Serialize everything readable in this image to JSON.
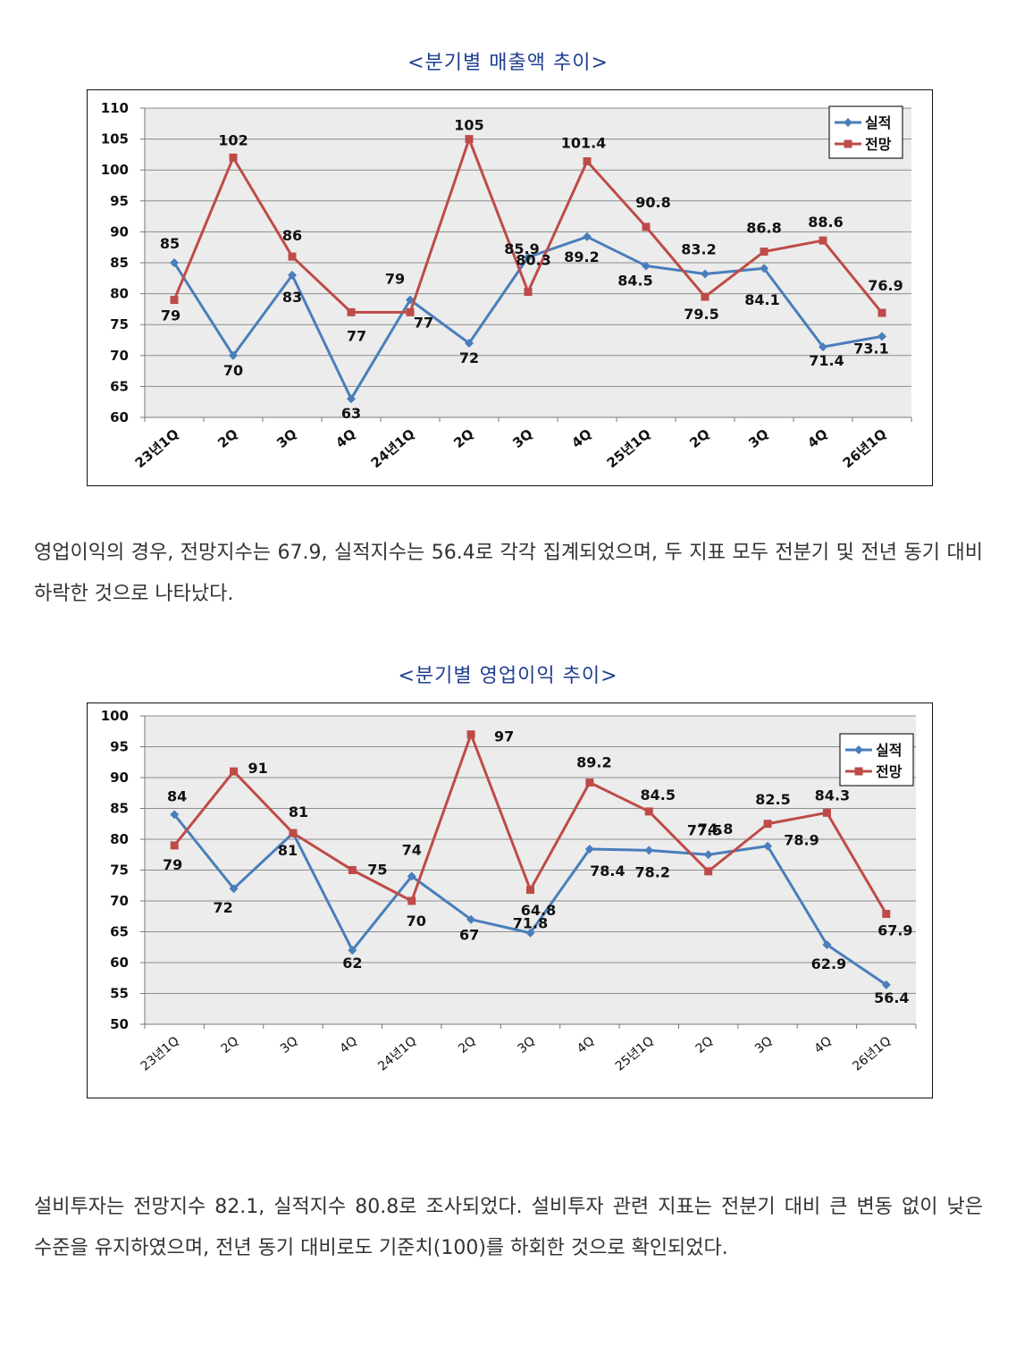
{
  "chart_data": [
    {
      "type": "line",
      "title": "<분기별 매출액 추이>",
      "categories": [
        "23년1Q",
        "2Q",
        "3Q",
        "4Q",
        "24년1Q",
        "2Q",
        "3Q",
        "4Q",
        "25년1Q",
        "2Q",
        "3Q",
        "4Q",
        "26년1Q"
      ],
      "series": [
        {
          "name": "실적",
          "color": "#4a7ebb",
          "values": [
            85,
            70,
            83,
            63,
            79,
            72,
            85.9,
            89.2,
            84.5,
            83.2,
            84.1,
            71.4,
            73.1
          ],
          "labels": [
            "85",
            "70",
            "83",
            "63",
            "79",
            "72",
            "85.9",
            "89.2",
            "84.5",
            "83.2",
            "84.1",
            "71.4",
            "73.1"
          ]
        },
        {
          "name": "전망",
          "color": "#be4b48",
          "values": [
            79,
            102,
            86,
            77,
            77,
            105,
            80.3,
            101.4,
            90.8,
            79.5,
            86.8,
            88.6,
            76.9
          ],
          "labels": [
            "79",
            "102",
            "86",
            "77",
            "77",
            "105",
            "80.3",
            "101.4",
            "90.8",
            "79.5",
            "86.8",
            "88.6",
            "76.9"
          ]
        }
      ],
      "ylim": [
        60,
        110
      ],
      "yticks": [
        "60",
        "65",
        "70",
        "75",
        "80",
        "85",
        "90",
        "95",
        "100",
        "105",
        "110"
      ],
      "grid": true,
      "legend": "top-right"
    },
    {
      "type": "line",
      "title": "<분기별 영업이익 추이>",
      "categories": [
        "23년1Q",
        "2Q",
        "3Q",
        "4Q",
        "24년1Q",
        "2Q",
        "3Q",
        "4Q",
        "25년1Q",
        "2Q",
        "3Q",
        "4Q",
        "26년1Q"
      ],
      "series": [
        {
          "name": "실적",
          "color": "#4a7ebb",
          "values": [
            84,
            72,
            81,
            62,
            74,
            67,
            64.8,
            78.4,
            78.2,
            77.5,
            78.9,
            62.9,
            56.4
          ],
          "labels": [
            "84",
            "72",
            "81",
            "62",
            "74",
            "67",
            "64.8",
            "78.4",
            "78.2",
            "77.5",
            "78.9",
            "62.9",
            "56.4"
          ]
        },
        {
          "name": "전망",
          "color": "#be4b48",
          "values": [
            79,
            91,
            81,
            75,
            70,
            97,
            71.8,
            89.2,
            84.5,
            74.8,
            82.5,
            84.3,
            67.9
          ],
          "labels": [
            "79",
            "91",
            "81",
            "75",
            "70",
            "97",
            "71.8",
            "89.2",
            "84.5",
            "74.8",
            "82.5",
            "84.3",
            "67.9"
          ]
        }
      ],
      "ylim": [
        50,
        100
      ],
      "yticks": [
        "50",
        "55",
        "60",
        "65",
        "70",
        "75",
        "80",
        "85",
        "90",
        "95",
        "100"
      ],
      "grid": true,
      "legend": "top-right"
    }
  ],
  "paragraphs": {
    "p1": "영업이익의 경우, 전망지수는 67.9, 실적지수는 56.4로 각각 집계되었으며, 두 지표 모두 전분기 및 전년 동기 대비 하락한 것으로 나타났다.",
    "p2": "설비투자는 전망지수 82.1, 실적지수 80.8로 조사되었다. 설비투자 관련 지표는 전분기 대비 큰 변동 없이 낮은 수준을 유지하였으며, 전년 동기 대비로도 기준치(100)를 하회한 것으로 확인되었다."
  }
}
